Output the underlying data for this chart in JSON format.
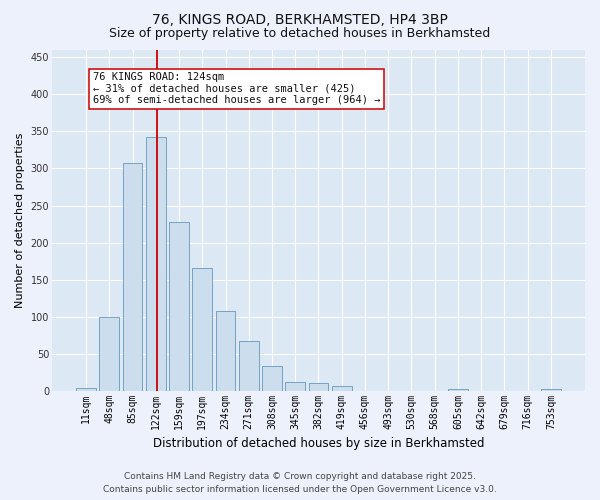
{
  "title": "76, KINGS ROAD, BERKHAMSTED, HP4 3BP",
  "subtitle": "Size of property relative to detached houses in Berkhamsted",
  "xlabel": "Distribution of detached houses by size in Berkhamsted",
  "ylabel": "Number of detached properties",
  "categories": [
    "11sqm",
    "48sqm",
    "85sqm",
    "122sqm",
    "159sqm",
    "197sqm",
    "234sqm",
    "271sqm",
    "308sqm",
    "345sqm",
    "382sqm",
    "419sqm",
    "456sqm",
    "493sqm",
    "530sqm",
    "568sqm",
    "605sqm",
    "642sqm",
    "679sqm",
    "716sqm",
    "753sqm"
  ],
  "values": [
    3,
    100,
    308,
    342,
    228,
    165,
    108,
    67,
    33,
    12,
    10,
    6,
    0,
    0,
    0,
    0,
    2,
    0,
    0,
    0,
    2
  ],
  "bar_color": "#ccdded",
  "bar_edge_color": "#6699bb",
  "annotation_text_line1": "76 KINGS ROAD: 124sqm",
  "annotation_text_line2": "← 31% of detached houses are smaller (425)",
  "annotation_text_line3": "69% of semi-detached houses are larger (964) →",
  "annotation_line_color": "#cc0000",
  "annotation_line_xindex": 3.07,
  "ylim": [
    0,
    460
  ],
  "yticks": [
    0,
    50,
    100,
    150,
    200,
    250,
    300,
    350,
    400,
    450
  ],
  "footer_line1": "Contains HM Land Registry data © Crown copyright and database right 2025.",
  "footer_line2": "Contains public sector information licensed under the Open Government Licence v3.0.",
  "background_color": "#edf1fb",
  "plot_bg_color": "#dde8f5",
  "grid_color": "#ffffff",
  "title_fontsize": 10,
  "subtitle_fontsize": 9,
  "tick_fontsize": 7,
  "ylabel_fontsize": 8,
  "xlabel_fontsize": 8.5,
  "annotation_fontsize": 7.5,
  "footer_fontsize": 6.5
}
